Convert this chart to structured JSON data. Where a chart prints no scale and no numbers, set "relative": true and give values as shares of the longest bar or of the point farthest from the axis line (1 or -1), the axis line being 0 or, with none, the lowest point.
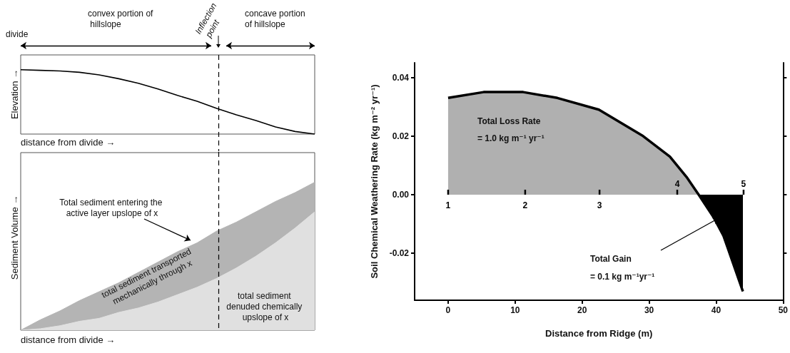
{
  "chart_data": [
    {
      "type": "line",
      "xlabel": "distance from divide →",
      "ylabel": "Elevation →",
      "relative": true,
      "marker": "none",
      "categories": [
        null,
        null,
        null,
        null,
        null,
        null,
        null,
        null,
        null,
        null,
        null,
        null,
        null,
        null,
        null,
        null
      ],
      "series": [
        {
          "color": "#000000",
          "values": [
            1.0,
            0.99,
            0.98,
            0.96,
            0.92,
            0.86,
            0.79,
            0.7,
            0.6,
            0.51,
            0.4,
            0.3,
            0.21,
            0.11,
            0.04,
            0
          ]
        }
      ],
      "annotations": [
        "divide",
        "convex portion of hillslope",
        "concave portion of hillslope",
        "Inflection point"
      ]
    },
    {
      "type": "area",
      "stacked": true,
      "xlabel": "distance from divide →",
      "ylabel": "Sediment Volume →",
      "relative": true,
      "marker": "none",
      "categories": [
        null,
        null,
        null,
        null,
        null,
        null,
        null,
        null,
        null,
        null,
        null,
        null,
        null,
        null,
        null,
        null
      ],
      "series": [
        {
          "color": "#e0e0e0",
          "values": [
            0,
            0.01,
            0.03,
            0.06,
            0.08,
            0.12,
            0.15,
            0.19,
            0.24,
            0.29,
            0.35,
            0.42,
            0.5,
            0.59,
            0.69,
            0.8
          ]
        },
        {
          "color": "#b4b4b4",
          "values": [
            0,
            0.06,
            0.1,
            0.14,
            0.18,
            0.2,
            0.24,
            0.27,
            0.29,
            0.3,
            0.32,
            0.31,
            0.3,
            0.28,
            0.24,
            0.2
          ]
        }
      ],
      "annotations": [
        "Total sediment entering the active layer upslope of x",
        "total sediment transported mechanically through x",
        "total sediment denuded chemically upslope of x"
      ]
    },
    {
      "type": "area",
      "xlabel": "Distance from Ridge (m)",
      "ylabel": "Soil Chemical Weathering Rate (kg m⁻² yr⁻¹)",
      "marker": "none",
      "grid": false,
      "xlim": [
        -5,
        50
      ],
      "xticks": [
        0,
        10,
        20,
        30,
        40,
        50
      ],
      "ylim": [
        -0.036,
        0.045
      ],
      "yticks": [
        -0.02,
        {
          "value": 0,
          "label": "0.00"
        },
        0.02,
        0.04
      ],
      "series": [
        {
          "color": "#b0b0b0",
          "x": [
            0,
            5.3,
            11.2,
            16.3,
            22.5,
            29.1,
            33.1,
            35.6,
            37.4
          ],
          "values": [
            0.033,
            0.035,
            0.035,
            0.033,
            0.029,
            0.02,
            0.013,
            0.006,
            0
          ]
        },
        {
          "color": "#000000",
          "x": [
            37.4,
            39.7,
            41.1,
            44
          ],
          "values": [
            0,
            -0.008,
            -0.014,
            -0.033
          ]
        },
        {
          "type": "line",
          "color": "#000000",
          "x": [
            0,
            5.3,
            11.2,
            16.3,
            22.5,
            29.1,
            33.1,
            35.6,
            37.4,
            39.7,
            41.1,
            44
          ],
          "values": [
            0.033,
            0.035,
            0.035,
            0.033,
            0.029,
            0.02,
            0.013,
            0.006,
            0,
            -0.008,
            -0.014,
            -0.033
          ]
        }
      ],
      "annotations": [
        "Total Loss Rate",
        "= 1.0 kg m⁻¹ yr⁻¹",
        "Total Gain",
        "= 0.1 kg m⁻¹yr⁻¹",
        {
          "text": "1",
          "x": 0,
          "y": 0
        },
        {
          "text": "2",
          "x": 11.5,
          "y": 0
        },
        {
          "text": "3",
          "x": 22.6,
          "y": 0
        },
        {
          "text": "4",
          "x": 34.2,
          "y": 0
        },
        {
          "text": "5",
          "x": 44.1,
          "y": 0
        }
      ]
    }
  ]
}
